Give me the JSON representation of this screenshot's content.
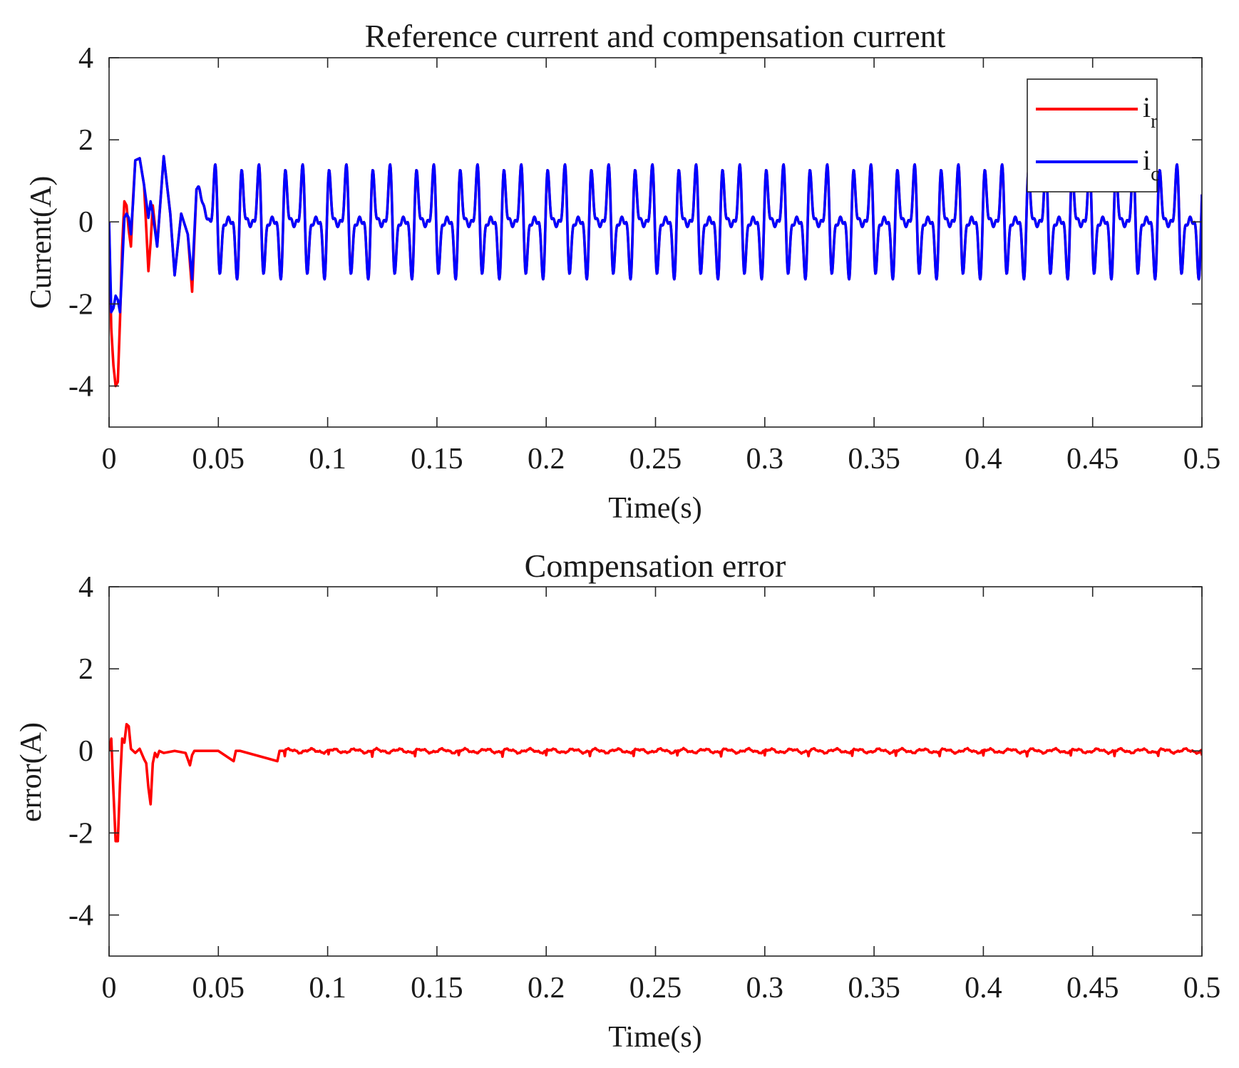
{
  "chart_data": [
    {
      "type": "line",
      "title": "Reference current and compensation current",
      "xlabel": "Time(s)",
      "ylabel": "Current(A)",
      "xlim": [
        0,
        0.5
      ],
      "ylim": [
        -5,
        4
      ],
      "xticks": [
        0,
        0.05,
        0.1,
        0.15,
        0.2,
        0.25,
        0.3,
        0.35,
        0.4,
        0.45,
        0.5
      ],
      "xtick_labels": [
        "0",
        "0.05",
        "0.1",
        "0.15",
        "0.2",
        "0.25",
        "0.3",
        "0.35",
        "0.4",
        "0.45",
        "0.5"
      ],
      "yticks": [
        -4,
        -2,
        0,
        2,
        4
      ],
      "ytick_labels": [
        "-4",
        "-2",
        "0",
        "2",
        "4"
      ],
      "grid": false,
      "legend": {
        "position": "top-right",
        "entries": [
          {
            "base": "i",
            "sub": "r",
            "series": "i_r",
            "color": "#ff0000"
          },
          {
            "base": "i",
            "sub": "c",
            "series": "i_c",
            "color": "#0000ff"
          }
        ]
      },
      "steady_state": {
        "period_s": 0.02,
        "harmonic_amplitudes": [
          0.25,
          0.0,
          0.55,
          0.0,
          0.4,
          0.0,
          0.2
        ],
        "harmonic_phases": [
          0.0,
          0.0,
          0.3,
          0.0,
          0.6,
          0.0,
          0.9
        ],
        "peak_max": 1.4,
        "peak_min": -1.4
      },
      "series": [
        {
          "name": "i_r",
          "color": "#ff0000",
          "x": [
            0,
            0.001,
            0.002,
            0.003,
            0.004,
            0.005,
            0.006,
            0.007,
            0.008,
            0.009,
            0.01,
            0.011,
            0.012,
            0.014,
            0.016,
            0.018,
            0.019,
            0.02,
            0.022,
            0.025,
            0.028,
            0.03,
            0.033,
            0.036,
            0.038,
            0.04
          ],
          "y": [
            0,
            -2.6,
            -3.5,
            -4.0,
            -3.9,
            -2.4,
            -0.6,
            0.5,
            0.4,
            -0.2,
            -0.6,
            0.6,
            1.5,
            1.55,
            0.9,
            -1.2,
            -0.5,
            0.4,
            -0.6,
            1.6,
            0.2,
            -1.3,
            0.2,
            -0.3,
            -1.7,
            0.8
          ]
        },
        {
          "name": "i_c",
          "color": "#0000ff",
          "x": [
            0,
            0.001,
            0.002,
            0.003,
            0.004,
            0.005,
            0.006,
            0.007,
            0.008,
            0.009,
            0.01,
            0.011,
            0.012,
            0.014,
            0.016,
            0.018,
            0.019,
            0.02,
            0.022,
            0.025,
            0.028,
            0.03,
            0.033,
            0.036,
            0.038,
            0.04
          ],
          "y": [
            0,
            -2.2,
            -2.1,
            -1.8,
            -1.9,
            -2.2,
            -1.1,
            0.1,
            0.2,
            0.1,
            -0.3,
            0.5,
            1.5,
            1.55,
            0.9,
            0.1,
            0.5,
            0.2,
            -0.6,
            1.6,
            0.2,
            -1.3,
            0.2,
            -0.3,
            -1.4,
            0.8
          ]
        }
      ]
    },
    {
      "type": "line",
      "title": "Compensation error",
      "xlabel": "Time(s)",
      "ylabel": "error(A)",
      "xlim": [
        0,
        0.5
      ],
      "ylim": [
        -5,
        4
      ],
      "xticks": [
        0,
        0.05,
        0.1,
        0.15,
        0.2,
        0.25,
        0.3,
        0.35,
        0.4,
        0.45,
        0.5
      ],
      "xtick_labels": [
        "0",
        "0.05",
        "0.1",
        "0.15",
        "0.2",
        "0.25",
        "0.3",
        "0.35",
        "0.4",
        "0.45",
        "0.5"
      ],
      "yticks": [
        -4,
        -2,
        0,
        2,
        4
      ],
      "ytick_labels": [
        "-4",
        "-2",
        "0",
        "2",
        "4"
      ],
      "grid": false,
      "steady_state": {
        "noise_amplitude": 0.07
      },
      "series": [
        {
          "name": "error",
          "color": "#ff0000",
          "x": [
            0,
            0.001,
            0.002,
            0.003,
            0.004,
            0.005,
            0.006,
            0.007,
            0.008,
            0.009,
            0.01,
            0.012,
            0.014,
            0.016,
            0.017,
            0.018,
            0.019,
            0.02,
            0.021,
            0.022,
            0.023,
            0.025,
            0.03,
            0.035,
            0.037,
            0.038,
            0.039,
            0.04,
            0.05,
            0.057,
            0.058,
            0.06,
            0.077,
            0.078,
            0.08
          ],
          "y": [
            0,
            0.3,
            -1.0,
            -2.2,
            -2.2,
            -0.8,
            0.3,
            0.2,
            0.65,
            0.6,
            0.05,
            -0.05,
            0.05,
            -0.2,
            -0.3,
            -0.9,
            -1.3,
            -0.3,
            -0.05,
            -0.15,
            0.0,
            -0.05,
            0.0,
            -0.05,
            -0.35,
            -0.1,
            0.0,
            0.0,
            0.0,
            -0.25,
            0.0,
            0.0,
            -0.25,
            0.0,
            0.0
          ]
        }
      ]
    }
  ]
}
